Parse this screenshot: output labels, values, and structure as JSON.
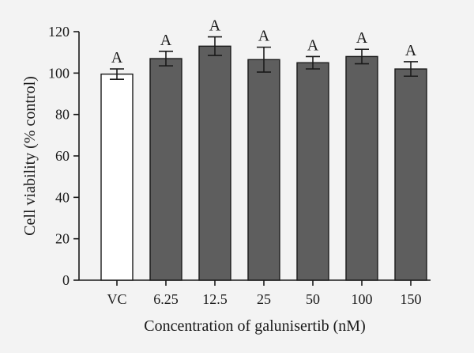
{
  "chart_data": {
    "type": "bar",
    "categories": [
      "VC",
      "6.25",
      "12.5",
      "25",
      "50",
      "100",
      "150"
    ],
    "values": [
      99.5,
      107,
      113,
      106.5,
      105,
      108,
      102
    ],
    "errors": [
      2.5,
      3.5,
      4.5,
      6,
      3,
      3.5,
      3.5
    ],
    "data_labels": [
      "A",
      "A",
      "A",
      "A",
      "A",
      "A",
      "A"
    ],
    "bar_fills": [
      "#ffffff",
      "#5e5e5e",
      "#5e5e5e",
      "#5e5e5e",
      "#5e5e5e",
      "#5e5e5e",
      "#5e5e5e"
    ],
    "xlabel": "Concentration of galunisertib (nM)",
    "ylabel": "Cell viability (% control)",
    "ylim": [
      0,
      120
    ],
    "yticks": [
      0,
      20,
      40,
      60,
      80,
      100,
      120
    ],
    "grid": false,
    "legend": "none"
  }
}
